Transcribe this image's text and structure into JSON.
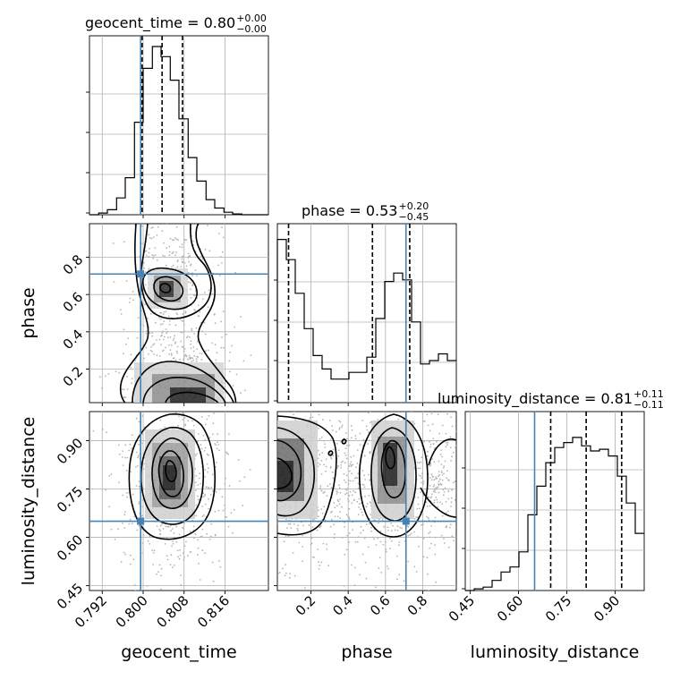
{
  "chart_data": {
    "type": "corner",
    "parameters": [
      "geocent_time",
      "phase",
      "luminosity_distance"
    ],
    "truths": {
      "geocent_time": 0.7995,
      "phase": 0.71,
      "luminosity_distance": 0.65
    },
    "colors": {
      "truth": "#4682b4",
      "hist": "#000000",
      "grid": "#b0b0b0",
      "points": "#b4b4b4"
    },
    "titles": [
      {
        "param": "geocent_time",
        "text": "geocent_time = 0.80",
        "sup": "+0.00",
        "sub": "−0.00"
      },
      {
        "param": "phase",
        "text": "phase = 0.53",
        "sup": "+0.20",
        "sub": "−0.45"
      },
      {
        "param": "luminosity_distance",
        "text": "luminosity_distance = 0.81",
        "sup": "+0.11",
        "sub": "−0.11"
      }
    ],
    "axes": {
      "geocent_time": {
        "range": [
          0.7895,
          0.8245
        ],
        "ticks": [
          0.792,
          0.8,
          0.808,
          0.816
        ],
        "tick_labels": [
          "0.792",
          "0.800",
          "0.808",
          "0.816"
        ],
        "label": "geocent_time"
      },
      "phase": {
        "range": [
          0.02,
          0.98
        ],
        "ticks": [
          0.2,
          0.4,
          0.6,
          0.8
        ],
        "tick_labels": [
          "0.2",
          "0.4",
          "0.6",
          "0.8"
        ],
        "label": "phase"
      },
      "luminosity_distance": {
        "range": [
          0.435,
          0.99
        ],
        "ticks": [
          0.45,
          0.6,
          0.75,
          0.9
        ],
        "tick_labels": [
          "0.45",
          "0.60",
          "0.75",
          "0.90"
        ],
        "label": "luminosity_distance"
      }
    },
    "histograms": {
      "geocent_time": {
        "bin_edges": [
          0.7895,
          0.7913,
          0.793,
          0.7948,
          0.7965,
          0.7983,
          0.8,
          0.8018,
          0.8035,
          0.8053,
          0.807,
          0.8088,
          0.8105,
          0.8123,
          0.814,
          0.8158,
          0.8175,
          0.8193,
          0.821,
          0.8228,
          0.8245
        ],
        "counts": [
          0,
          0.01,
          0.03,
          0.1,
          0.22,
          0.55,
          0.87,
          1.0,
          0.94,
          0.8,
          0.57,
          0.34,
          0.2,
          0.09,
          0.04,
          0.015,
          0.005,
          0,
          0,
          0
        ],
        "quantiles": [
          0.7998,
          0.8037,
          0.8077
        ]
      },
      "phase": {
        "bin_edges": [
          0.02,
          0.068,
          0.116,
          0.164,
          0.212,
          0.26,
          0.308,
          0.356,
          0.404,
          0.452,
          0.5,
          0.548,
          0.596,
          0.644,
          0.692,
          0.74,
          0.788,
          0.836,
          0.884,
          0.932,
          0.98
        ],
        "counts": [
          0.97,
          0.85,
          0.65,
          0.44,
          0.28,
          0.2,
          0.14,
          0.14,
          0.18,
          0.18,
          0.27,
          0.5,
          0.72,
          0.77,
          0.73,
          0.48,
          0.23,
          0.25,
          0.29,
          0.25
        ],
        "quantiles": [
          0.08,
          0.53,
          0.73
        ]
      },
      "luminosity_distance": {
        "bin_edges": [
          0.435,
          0.4628,
          0.4905,
          0.5183,
          0.546,
          0.5738,
          0.6015,
          0.6293,
          0.657,
          0.6848,
          0.7125,
          0.7403,
          0.768,
          0.7958,
          0.8235,
          0.8513,
          0.879,
          0.9068,
          0.9345,
          0.9623,
          0.99
        ],
        "counts": [
          0,
          0.01,
          0.02,
          0.06,
          0.11,
          0.14,
          0.23,
          0.45,
          0.62,
          0.76,
          0.85,
          0.88,
          0.91,
          0.86,
          0.83,
          0.84,
          0.8,
          0.68,
          0.52,
          0.34
        ],
        "quantiles": [
          0.7,
          0.81,
          0.92
        ]
      }
    }
  }
}
